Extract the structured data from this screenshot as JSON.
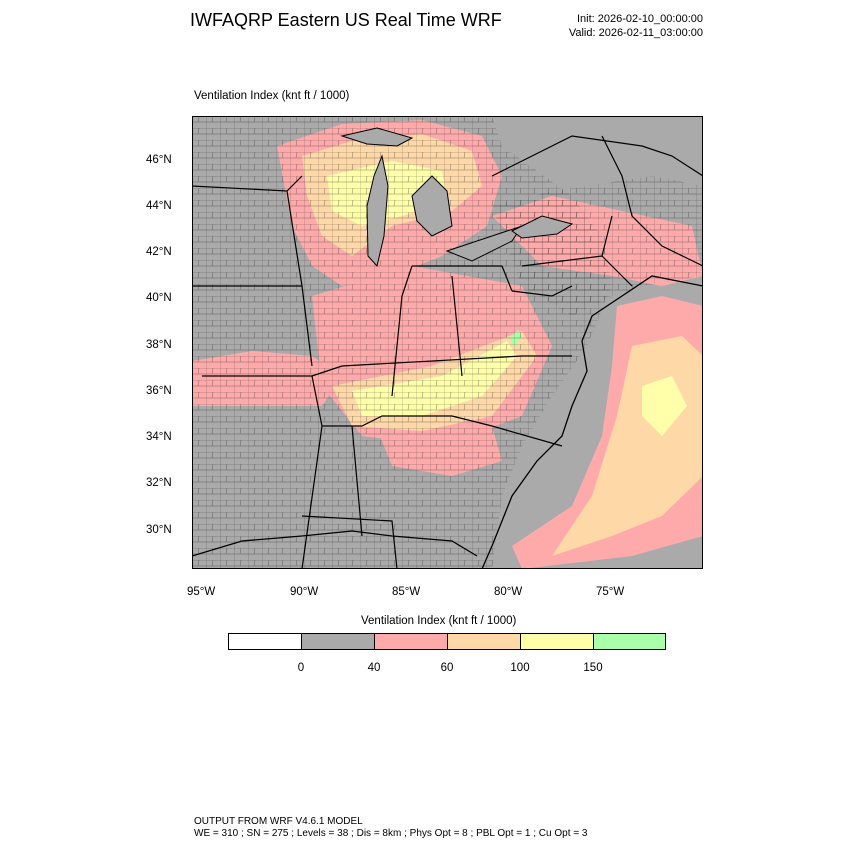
{
  "header": {
    "title": "IWFAQRP Eastern US Real Time WRF",
    "init": "Init: 2026-02-10_00:00:00",
    "valid": "Valid: 2026-02-11_03:00:00"
  },
  "map": {
    "subtitle": "Ventilation Index   (knt ft / 1000)",
    "lat_labels": [
      "46°N",
      "44°N",
      "42°N",
      "40°N",
      "38°N",
      "36°N",
      "34°N",
      "32°N",
      "30°N"
    ],
    "lon_labels": [
      "95°W",
      "90°W",
      "85°W",
      "80°W",
      "75°W"
    ],
    "extent": {
      "lon_min": -95.5,
      "lon_max": -70.5,
      "lat_min": 28.4,
      "lat_max": 47.9
    },
    "colors": {
      "land_low": "#aaaaaa",
      "c40_60": "#ffaaaa",
      "c60_100": "#ffd8a8",
      "c100_150": "#ffffaa",
      "c150plus": "#aaffaa",
      "border": "#000000"
    }
  },
  "colorbar": {
    "title": "Ventilation Index  (knt ft / 1000)",
    "tick_labels": [
      "0",
      "40",
      "60",
      "100",
      "150"
    ],
    "colors": [
      "#ffffff",
      "#aaaaaa",
      "#ffaaaa",
      "#ffd8a8",
      "#ffffaa",
      "#aaffaa"
    ]
  },
  "footer": {
    "line1": "OUTPUT FROM WRF V4.6.1 MODEL",
    "line2": "WE = 310 ; SN = 275 ; Levels = 38 ; Dis = 8km ; Phys Opt = 8 ; PBL Opt = 1 ; Cu Opt = 3"
  }
}
